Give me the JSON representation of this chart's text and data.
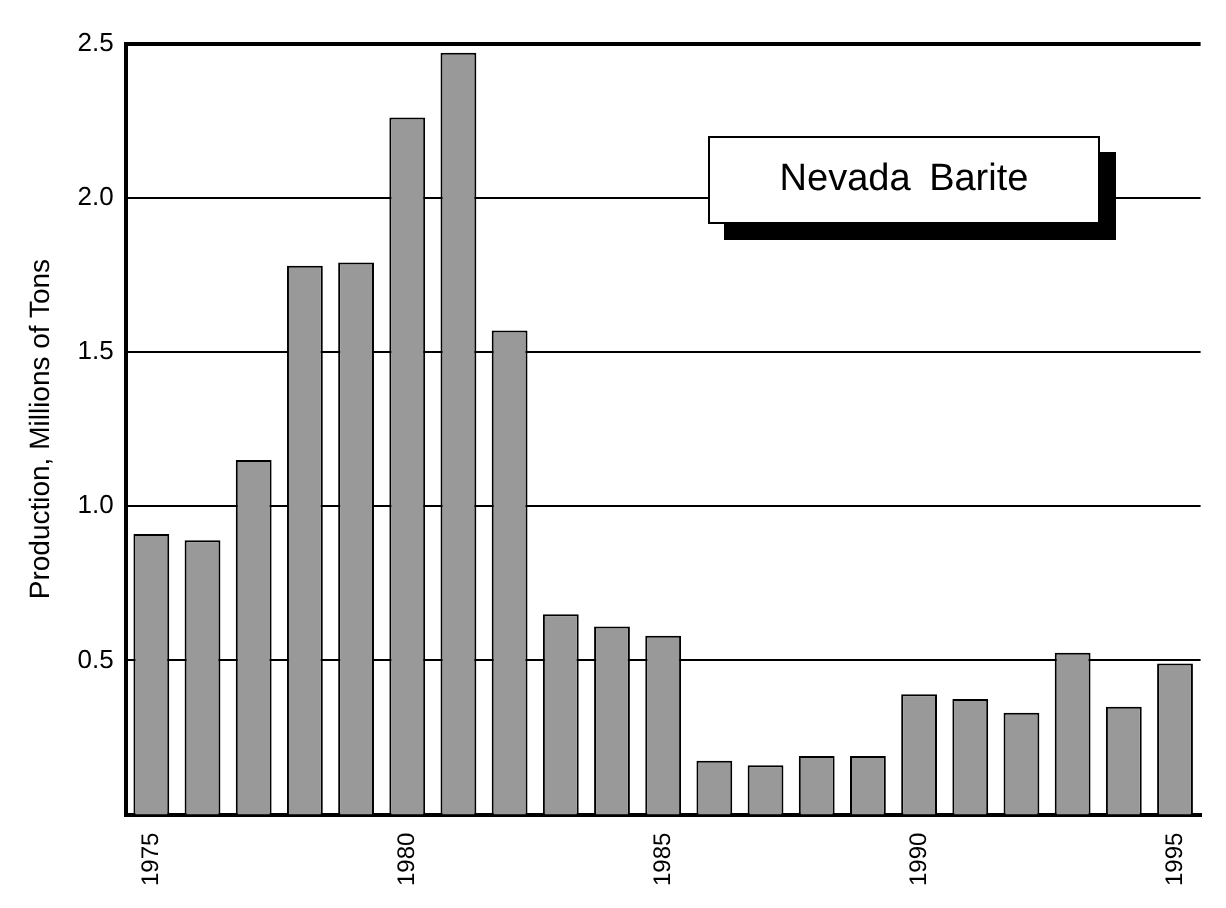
{
  "chart_data": {
    "type": "bar",
    "title": "Nevada Barite",
    "ylabel": "Production, Millions of Tons",
    "categories": [
      "1975",
      null,
      null,
      null,
      null,
      "1980",
      null,
      null,
      null,
      null,
      "1985",
      null,
      null,
      null,
      null,
      "1990",
      null,
      null,
      null,
      null,
      "1995"
    ],
    "values": [
      0.91,
      0.89,
      1.15,
      1.78,
      1.79,
      2.26,
      2.47,
      1.57,
      0.65,
      0.61,
      0.58,
      0.175,
      0.16,
      0.19,
      0.19,
      0.39,
      0.375,
      0.33,
      0.525,
      0.35,
      0.49
    ],
    "color": "#999999",
    "ylim": [
      0,
      2.5
    ],
    "yticks": [
      0.5,
      {
        "value": 1,
        "label": "1.0"
      },
      1.5,
      {
        "value": 2,
        "label": "2.0"
      },
      2.5
    ],
    "grid": "y",
    "legend": false
  }
}
